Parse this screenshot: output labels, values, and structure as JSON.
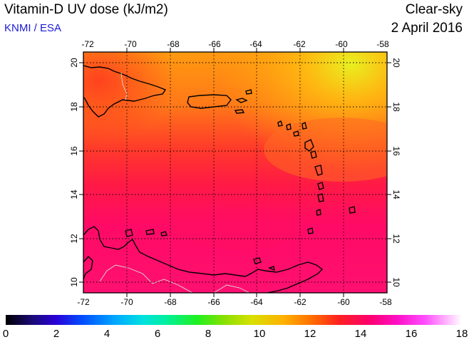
{
  "header": {
    "title": "Vitamin-D UV dose (kJ/m2)",
    "credit": "KNMI / ESA",
    "mode": "Clear-sky",
    "date": "2 April 2016"
  },
  "map": {
    "lon_range": [
      -72,
      -58
    ],
    "lat_range": [
      9.5,
      20.5
    ],
    "lon_ticks": [
      "-72",
      "-70",
      "-68",
      "-66",
      "-64",
      "-62",
      "-60",
      "-58"
    ],
    "lat_ticks": [
      "20",
      "18",
      "16",
      "14",
      "12",
      "10"
    ],
    "grid": "dotted",
    "colors": {
      "low": "#ff0066",
      "mid": "#ff2a2a",
      "high": "#ff7a10",
      "peak": "#e8f020",
      "land_outline": "#000000",
      "borders": "#d0d0d0"
    }
  },
  "colorbar": {
    "min": 0,
    "max": 18,
    "labels": [
      "0",
      "2",
      "4",
      "6",
      "8",
      "10",
      "12",
      "14",
      "16",
      "18"
    ]
  }
}
